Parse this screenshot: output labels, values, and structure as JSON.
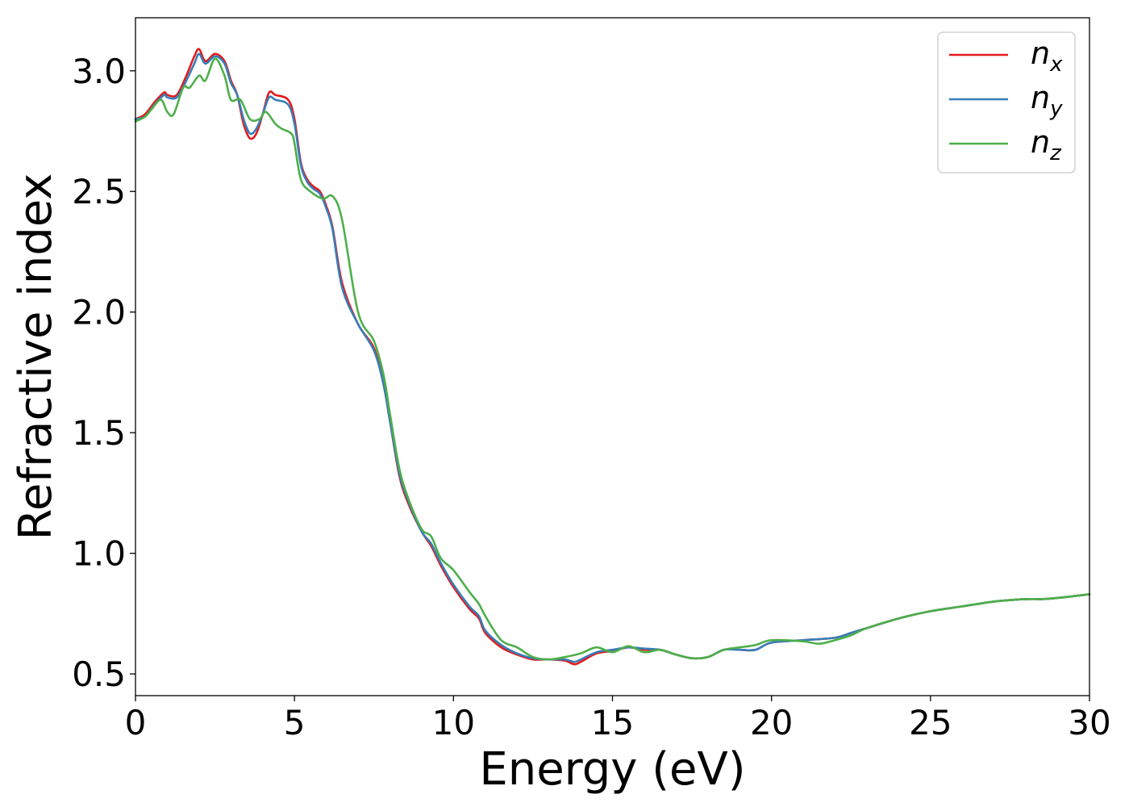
{
  "chart_data": {
    "type": "line",
    "xlabel": "Energy (eV)",
    "ylabel": "Refractive index",
    "xlim": [
      0,
      30
    ],
    "ylim": [
      0.41,
      3.22
    ],
    "xticks": [
      0,
      5,
      10,
      15,
      20,
      25,
      30
    ],
    "yticks": [
      0.5,
      1.0,
      1.5,
      2.0,
      2.5,
      3.0
    ],
    "xtick_labels": [
      "0",
      "5",
      "10",
      "15",
      "20",
      "25",
      "30"
    ],
    "ytick_labels": [
      "0.5",
      "1.0",
      "1.5",
      "2.0",
      "2.5",
      "3.0"
    ],
    "grid": false,
    "legend_position": "top-right",
    "series": [
      {
        "name": "n_x",
        "label_base": "n",
        "label_sub": "x",
        "color": "#e41a1c",
        "x": [
          0,
          0.3,
          0.6,
          0.9,
          1.0,
          1.3,
          1.6,
          1.85,
          2.0,
          2.2,
          2.5,
          2.8,
          3.0,
          3.2,
          3.4,
          3.6,
          3.8,
          4.0,
          4.2,
          4.4,
          4.8,
          5.0,
          5.2,
          5.4,
          5.6,
          5.8,
          6.0,
          6.2,
          6.5,
          7.0,
          7.5,
          7.8,
          8.0,
          8.3,
          8.6,
          9.0,
          9.3,
          9.6,
          10.0,
          10.5,
          10.8,
          11.0,
          11.5,
          12.0,
          12.5,
          13.0,
          13.5,
          13.8,
          14.0,
          14.5,
          15.0,
          15.5,
          16.0,
          16.5,
          17.0,
          17.5,
          18.0,
          18.5,
          19.0,
          19.5,
          20.0,
          21.0,
          22.0,
          22.5,
          23.0,
          24.0,
          25.0,
          26.0,
          27.0,
          28.0,
          28.5,
          29.0,
          30.0
        ],
        "values": [
          2.8,
          2.82,
          2.87,
          2.91,
          2.9,
          2.9,
          2.98,
          3.06,
          3.09,
          3.04,
          3.07,
          3.04,
          2.96,
          2.9,
          2.78,
          2.72,
          2.74,
          2.82,
          2.91,
          2.9,
          2.88,
          2.8,
          2.62,
          2.55,
          2.52,
          2.5,
          2.44,
          2.35,
          2.12,
          1.95,
          1.85,
          1.7,
          1.55,
          1.32,
          1.2,
          1.09,
          1.03,
          0.95,
          0.86,
          0.77,
          0.73,
          0.67,
          0.61,
          0.58,
          0.56,
          0.56,
          0.555,
          0.54,
          0.55,
          0.585,
          0.595,
          0.61,
          0.6,
          0.6,
          0.58,
          0.565,
          0.57,
          0.6,
          0.6,
          0.6,
          0.63,
          0.64,
          0.65,
          0.67,
          0.69,
          0.73,
          0.76,
          0.78,
          0.8,
          0.81,
          0.81,
          0.815,
          0.83
        ]
      },
      {
        "name": "n_y",
        "label_base": "n",
        "label_sub": "y",
        "color": "#377eb8",
        "x": [
          0,
          0.3,
          0.6,
          0.9,
          1.0,
          1.3,
          1.6,
          1.85,
          2.0,
          2.2,
          2.5,
          2.8,
          3.0,
          3.2,
          3.4,
          3.6,
          3.8,
          4.0,
          4.2,
          4.4,
          4.8,
          5.0,
          5.2,
          5.4,
          5.6,
          5.8,
          6.0,
          6.2,
          6.5,
          7.0,
          7.5,
          7.8,
          8.0,
          8.3,
          8.6,
          9.0,
          9.3,
          9.6,
          10.0,
          10.5,
          10.8,
          11.0,
          11.5,
          12.0,
          12.5,
          13.0,
          13.5,
          13.8,
          14.0,
          14.5,
          15.0,
          15.5,
          16.0,
          16.5,
          17.0,
          17.5,
          18.0,
          18.5,
          19.0,
          19.5,
          20.0,
          21.0,
          22.0,
          22.5,
          23.0,
          24.0,
          25.0,
          26.0,
          27.0,
          28.0,
          28.5,
          29.0,
          30.0
        ],
        "values": [
          2.8,
          2.81,
          2.86,
          2.9,
          2.89,
          2.89,
          2.96,
          3.03,
          3.07,
          3.03,
          3.06,
          3.03,
          2.95,
          2.9,
          2.8,
          2.74,
          2.76,
          2.82,
          2.89,
          2.88,
          2.86,
          2.78,
          2.61,
          2.54,
          2.51,
          2.49,
          2.43,
          2.34,
          2.1,
          1.95,
          1.84,
          1.7,
          1.55,
          1.33,
          1.21,
          1.09,
          1.04,
          0.96,
          0.87,
          0.78,
          0.74,
          0.68,
          0.62,
          0.585,
          0.565,
          0.56,
          0.56,
          0.55,
          0.56,
          0.59,
          0.6,
          0.61,
          0.605,
          0.6,
          0.58,
          0.565,
          0.57,
          0.6,
          0.6,
          0.6,
          0.63,
          0.64,
          0.65,
          0.67,
          0.69,
          0.73,
          0.76,
          0.78,
          0.8,
          0.81,
          0.81,
          0.815,
          0.83
        ]
      },
      {
        "name": "n_z",
        "label_base": "n",
        "label_sub": "z",
        "color": "#4daf4a",
        "x": [
          0,
          0.3,
          0.5,
          0.8,
          1.0,
          1.2,
          1.5,
          1.7,
          2.0,
          2.2,
          2.5,
          2.8,
          3.0,
          3.3,
          3.6,
          3.9,
          4.1,
          4.4,
          4.6,
          4.9,
          5.0,
          5.2,
          5.5,
          5.9,
          6.2,
          6.5,
          7.0,
          7.5,
          7.8,
          8.0,
          8.3,
          8.6,
          9.0,
          9.3,
          9.6,
          10.0,
          10.5,
          10.8,
          11.0,
          11.5,
          12.0,
          12.5,
          13.0,
          13.5,
          14.0,
          14.5,
          15.0,
          15.5,
          16.0,
          16.5,
          17.0,
          17.5,
          18.0,
          18.5,
          19.0,
          19.5,
          20.0,
          21.0,
          21.5,
          22.0,
          22.5,
          23.0,
          24.0,
          25.0,
          26.0,
          27.0,
          28.0,
          28.5,
          29.0,
          30.0
        ],
        "values": [
          2.79,
          2.81,
          2.84,
          2.88,
          2.83,
          2.82,
          2.93,
          2.93,
          2.98,
          2.96,
          3.05,
          2.98,
          2.88,
          2.88,
          2.8,
          2.8,
          2.83,
          2.78,
          2.76,
          2.74,
          2.7,
          2.55,
          2.5,
          2.47,
          2.48,
          2.38,
          2.0,
          1.88,
          1.74,
          1.58,
          1.35,
          1.22,
          1.1,
          1.07,
          0.98,
          0.93,
          0.84,
          0.79,
          0.74,
          0.64,
          0.61,
          0.57,
          0.56,
          0.57,
          0.585,
          0.61,
          0.59,
          0.615,
          0.59,
          0.6,
          0.58,
          0.565,
          0.57,
          0.6,
          0.61,
          0.62,
          0.64,
          0.635,
          0.625,
          0.64,
          0.66,
          0.69,
          0.73,
          0.76,
          0.78,
          0.8,
          0.81,
          0.81,
          0.815,
          0.83
        ]
      }
    ]
  }
}
